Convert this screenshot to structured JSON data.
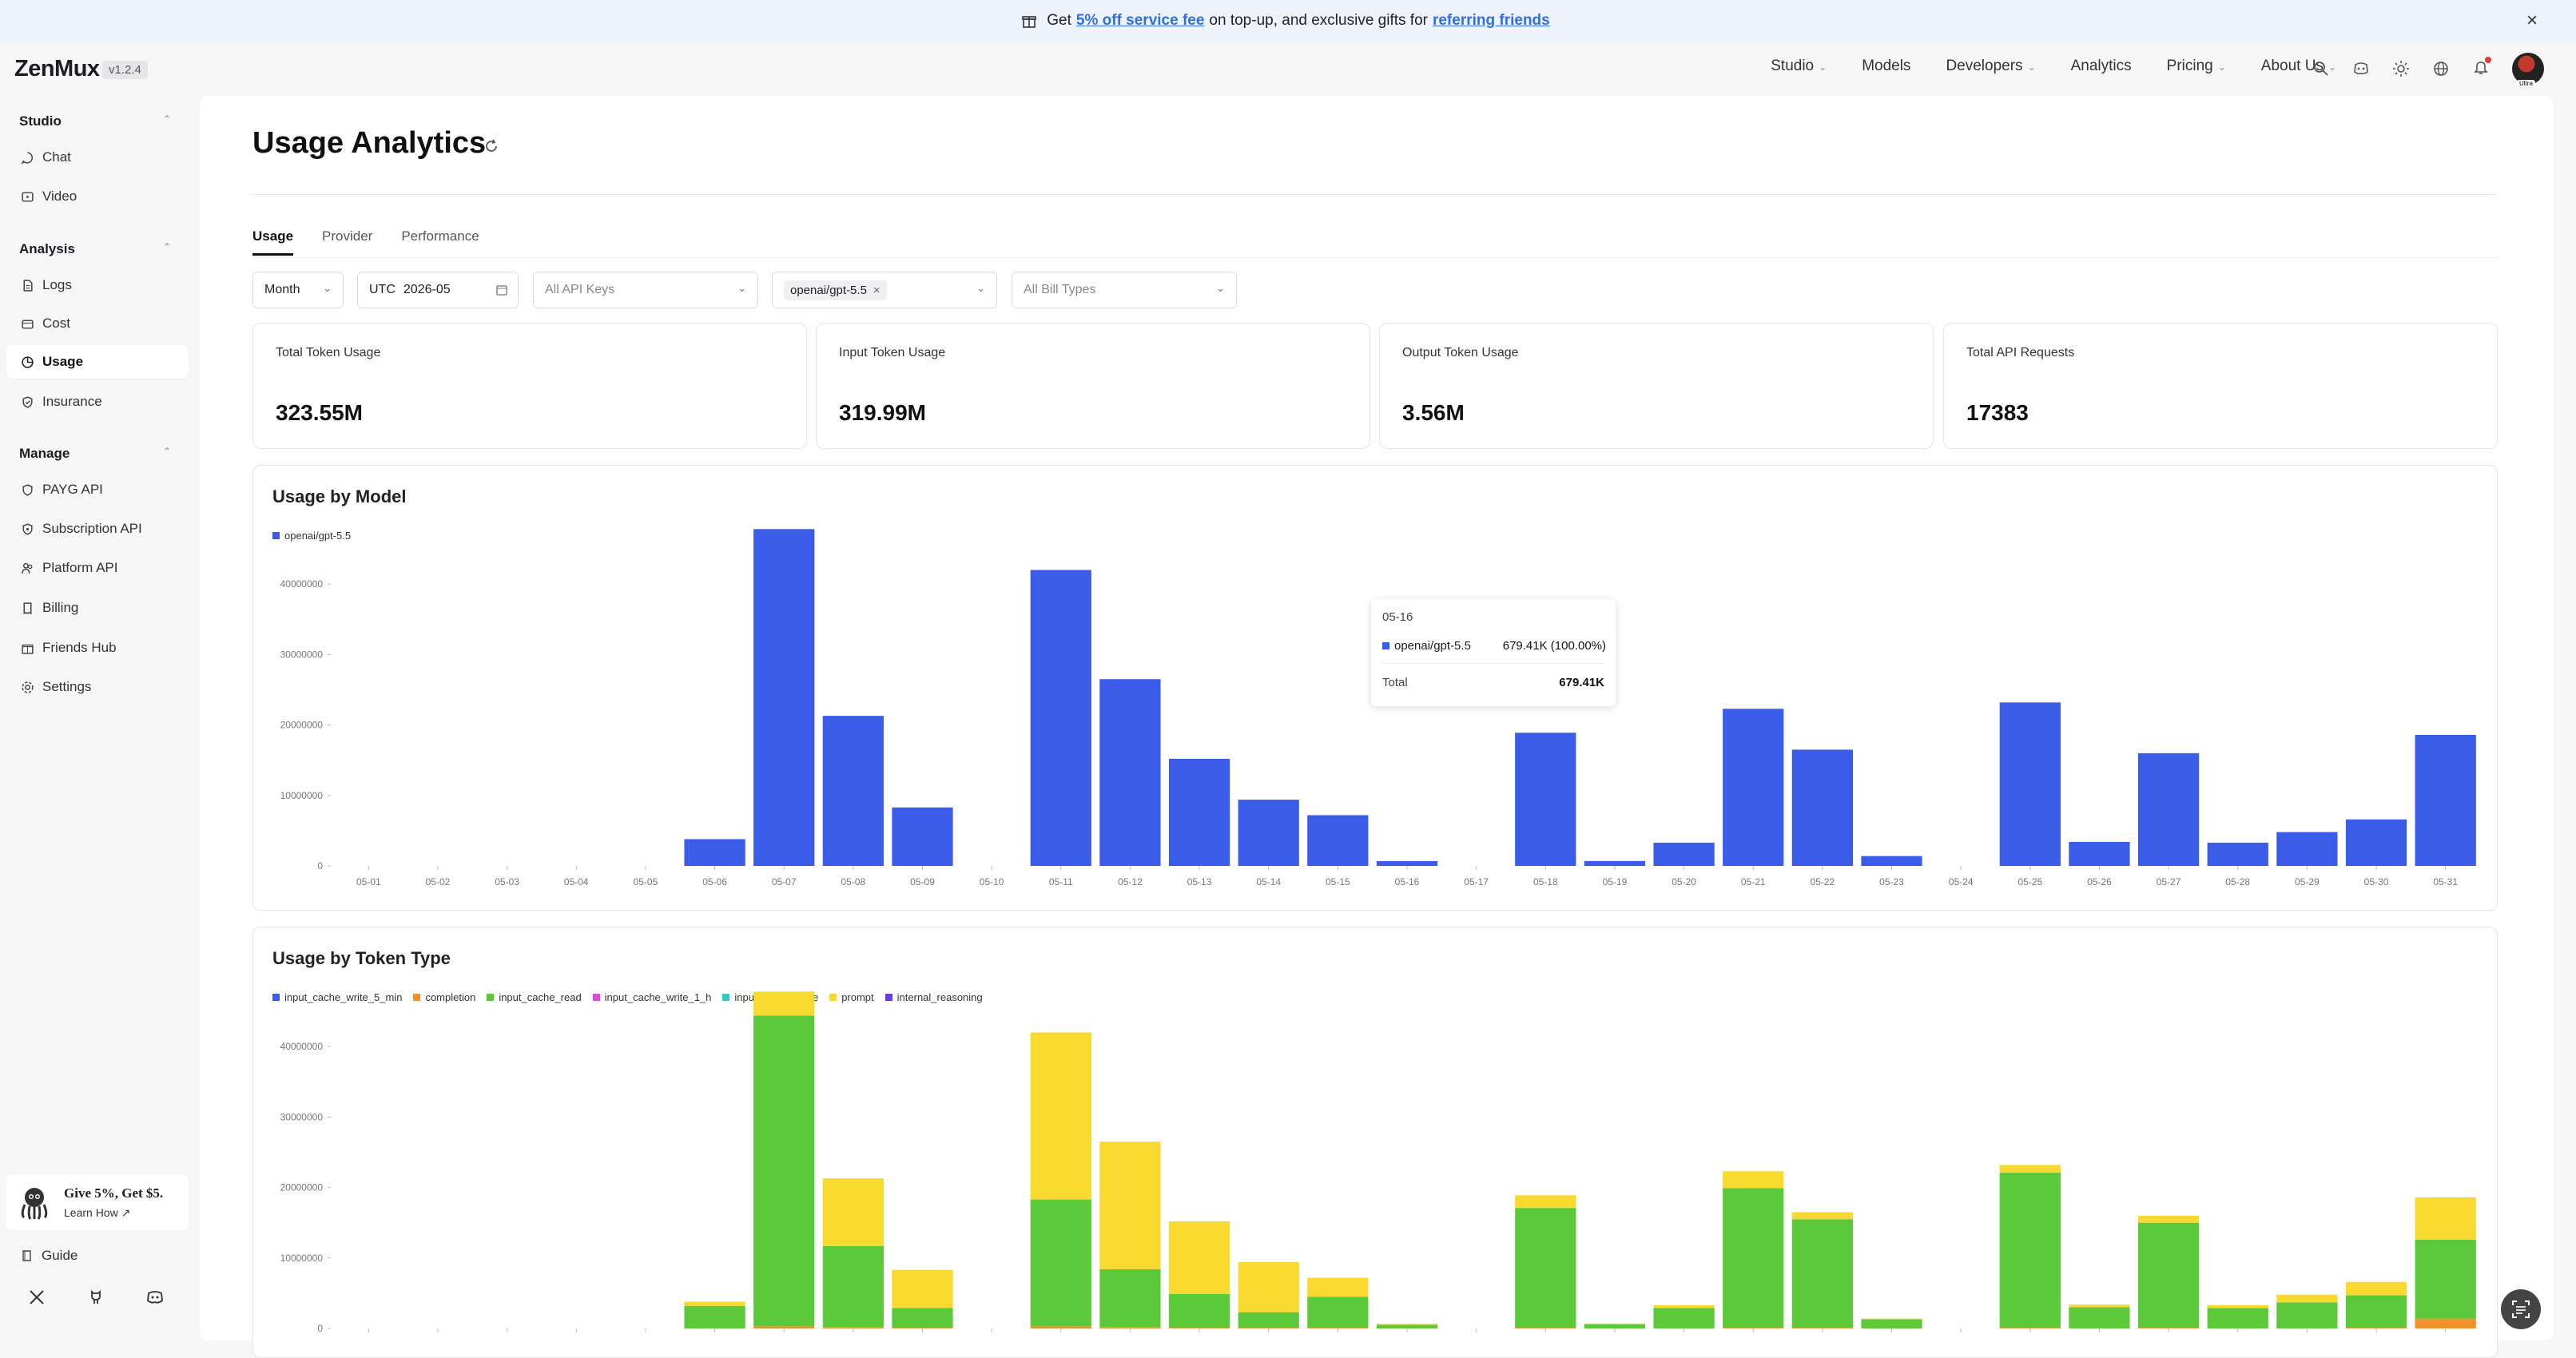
{
  "banner": {
    "pre": "Get",
    "link1": "5% off service fee",
    "mid": "on top-up, and exclusive gifts for",
    "link2": "referring friends"
  },
  "app": {
    "logo": "ZenMux",
    "version": "v1.2.4"
  },
  "nav": [
    {
      "label": "Studio",
      "dropdown": true
    },
    {
      "label": "Models",
      "dropdown": false
    },
    {
      "label": "Developers",
      "dropdown": true
    },
    {
      "label": "Analytics",
      "dropdown": false
    },
    {
      "label": "Pricing",
      "dropdown": true
    },
    {
      "label": "About Us",
      "dropdown": true
    }
  ],
  "avatar_tag": "Ultra",
  "sidebar": {
    "studio": {
      "title": "Studio",
      "items": [
        "Chat",
        "Video"
      ]
    },
    "analysis": {
      "title": "Analysis",
      "items": [
        "Logs",
        "Cost",
        "Usage",
        "Insurance"
      ]
    },
    "manage": {
      "title": "Manage",
      "items": [
        "PAYG API",
        "Subscription API",
        "Platform API",
        "Billing",
        "Friends Hub",
        "Settings"
      ]
    },
    "active": "Usage",
    "promo": {
      "title": "Give 5%, Get $5.",
      "link": "Learn How"
    },
    "guide": "Guide"
  },
  "page": {
    "title": "Usage Analytics",
    "tabs": [
      "Usage",
      "Provider",
      "Performance"
    ],
    "active_tab": "Usage"
  },
  "filters": {
    "period": "Month",
    "tz": "UTC",
    "date": "2026-05",
    "api_keys": "All API Keys",
    "model_chip": "openai/gpt-5.5",
    "bill_types": "All Bill Types"
  },
  "cards": [
    {
      "label": "Total Token Usage",
      "value": "323.55M"
    },
    {
      "label": "Input Token Usage",
      "value": "319.99M"
    },
    {
      "label": "Output Token Usage",
      "value": "3.56M"
    },
    {
      "label": "Total API Requests",
      "value": "17383"
    }
  ],
  "panels": {
    "model": {
      "title": "Usage by Model"
    },
    "token": {
      "title": "Usage by Token Type"
    }
  },
  "tooltip": {
    "date": "05-16",
    "series": "openai/gpt-5.5",
    "value": "679.41K (100.00%)",
    "total_label": "Total",
    "total_value": "679.41K"
  },
  "chart_data": [
    {
      "type": "bar",
      "title": "Usage by Model",
      "categories": [
        "05-01",
        "05-02",
        "05-03",
        "05-04",
        "05-05",
        "05-06",
        "05-07",
        "05-08",
        "05-09",
        "05-10",
        "05-11",
        "05-12",
        "05-13",
        "05-14",
        "05-15",
        "05-16",
        "05-17",
        "05-18",
        "05-19",
        "05-20",
        "05-21",
        "05-22",
        "05-23",
        "05-24",
        "05-25",
        "05-26",
        "05-27",
        "05-28",
        "05-29",
        "05-30",
        "05-31"
      ],
      "yticks": [
        "0",
        "10000000",
        "20000000",
        "30000000",
        "40000000"
      ],
      "ylim": [
        0,
        47500000
      ],
      "series": [
        {
          "name": "openai/gpt-5.5",
          "color": "#3a5ce9",
          "values": [
            0,
            0,
            0,
            0,
            0,
            3800000,
            47800000,
            21300000,
            8300000,
            0,
            42000000,
            26500000,
            15200000,
            9400000,
            7200000,
            679410,
            0,
            18900000,
            700000,
            3300000,
            22300000,
            16500000,
            1400000,
            0,
            23200000,
            3400000,
            16000000,
            3300000,
            4800000,
            6600000,
            18600000
          ]
        }
      ],
      "legend": "top-left"
    },
    {
      "type": "bar",
      "stacked": true,
      "title": "Usage by Token Type",
      "categories": [
        "05-01",
        "05-02",
        "05-03",
        "05-04",
        "05-05",
        "05-06",
        "05-07",
        "05-08",
        "05-09",
        "05-10",
        "05-11",
        "05-12",
        "05-13",
        "05-14",
        "05-15",
        "05-16",
        "05-17",
        "05-18",
        "05-19",
        "05-20",
        "05-21",
        "05-22",
        "05-23",
        "05-24",
        "05-25",
        "05-26",
        "05-27",
        "05-28",
        "05-29",
        "05-30",
        "05-31"
      ],
      "yticks": [
        "0",
        "10000000",
        "20000000",
        "30000000",
        "40000000"
      ],
      "ylim": [
        0,
        47500000
      ],
      "series": [
        {
          "name": "input_cache_write_5_min",
          "color": "#3a5ce9",
          "values": [
            0,
            0,
            0,
            0,
            0,
            0,
            0,
            0,
            0,
            0,
            0,
            0,
            0,
            0,
            0,
            0,
            0,
            0,
            0,
            0,
            0,
            0,
            0,
            0,
            0,
            0,
            0,
            0,
            0,
            0,
            0
          ]
        },
        {
          "name": "completion",
          "color": "#f0922b",
          "values": [
            0,
            0,
            0,
            0,
            0,
            0,
            300000,
            200000,
            100000,
            0,
            300000,
            200000,
            100000,
            100000,
            100000,
            0,
            0,
            100000,
            0,
            0,
            100000,
            100000,
            0,
            0,
            100000,
            0,
            100000,
            0,
            0,
            100000,
            1400000
          ]
        },
        {
          "name": "input_cache_read",
          "color": "#5cc93a",
          "values": [
            0,
            0,
            0,
            0,
            0,
            3200000,
            44100000,
            11500000,
            2800000,
            0,
            18000000,
            8200000,
            4800000,
            2200000,
            4400000,
            500000,
            0,
            17000000,
            600000,
            2900000,
            19800000,
            15400000,
            1300000,
            0,
            22000000,
            3000000,
            14900000,
            2900000,
            3700000,
            4600000,
            11200000
          ]
        },
        {
          "name": "input_cache_write_1_h",
          "color": "#d34fd6",
          "values": [
            0,
            0,
            0,
            0,
            0,
            0,
            0,
            0,
            0,
            0,
            0,
            0,
            0,
            0,
            0,
            0,
            0,
            0,
            0,
            0,
            0,
            0,
            0,
            0,
            0,
            0,
            0,
            0,
            0,
            0,
            0
          ]
        },
        {
          "name": "input_cache_write",
          "color": "#37c6c9",
          "values": [
            0,
            0,
            0,
            0,
            0,
            0,
            0,
            0,
            0,
            0,
            0,
            0,
            0,
            0,
            0,
            0,
            0,
            0,
            0,
            0,
            0,
            0,
            0,
            0,
            0,
            0,
            0,
            0,
            0,
            0,
            0
          ]
        },
        {
          "name": "prompt",
          "color": "#f8d92f",
          "values": [
            0,
            0,
            0,
            0,
            0,
            600000,
            3400000,
            9600000,
            5400000,
            0,
            23700000,
            18100000,
            10300000,
            7100000,
            2700000,
            179410,
            0,
            1800000,
            100000,
            400000,
            2400000,
            1000000,
            100000,
            0,
            1100000,
            400000,
            1000000,
            400000,
            1100000,
            1900000,
            6000000
          ]
        },
        {
          "name": "internal_reasoning",
          "color": "#6a3fd8",
          "values": [
            0,
            0,
            0,
            0,
            0,
            0,
            0,
            0,
            0,
            0,
            0,
            0,
            0,
            0,
            0,
            0,
            0,
            0,
            0,
            0,
            0,
            0,
            0,
            0,
            0,
            0,
            0,
            0,
            0,
            0,
            0
          ]
        }
      ],
      "legend": "top-left"
    }
  ]
}
